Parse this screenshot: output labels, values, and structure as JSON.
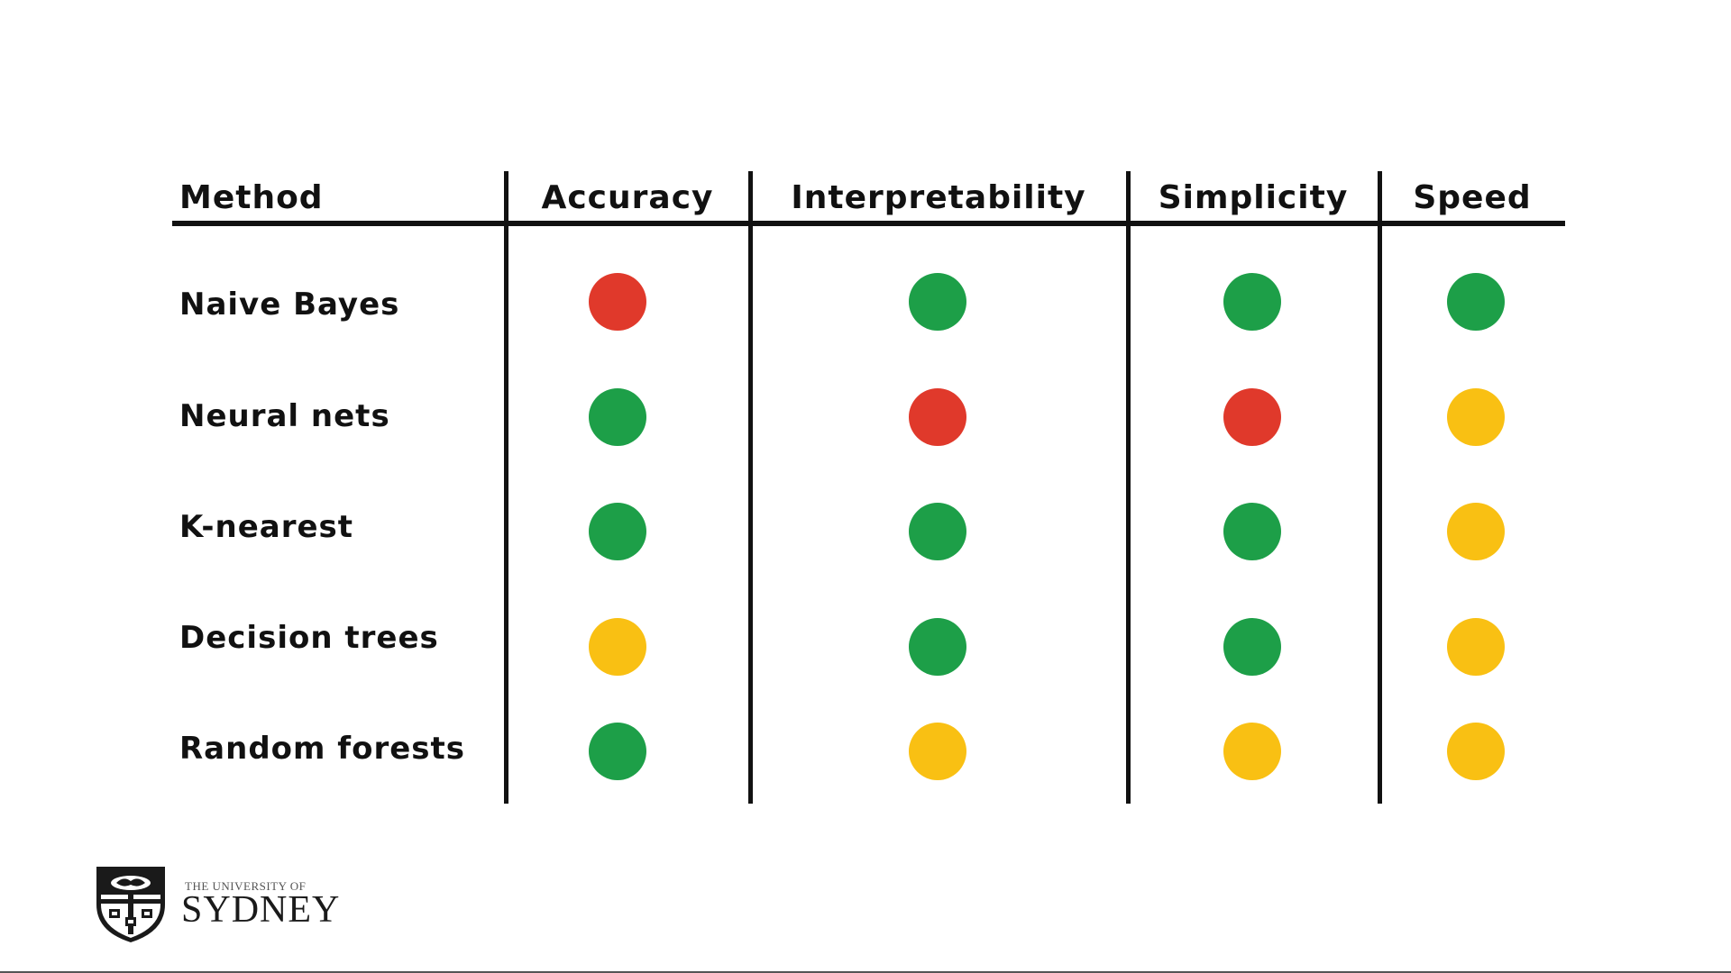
{
  "table": {
    "headers": {
      "method": "Method",
      "accuracy": "Accuracy",
      "interpretability": "Interpretability",
      "simplicity": "Simplicity",
      "speed": "Speed"
    },
    "rows": [
      {
        "method": "Naive Bayes",
        "accuracy": "red",
        "interpretability": "green",
        "simplicity": "green",
        "speed": "green"
      },
      {
        "method": "Neural nets",
        "accuracy": "green",
        "interpretability": "red",
        "simplicity": "red",
        "speed": "yellow"
      },
      {
        "method": "K-nearest",
        "accuracy": "green",
        "interpretability": "green",
        "simplicity": "green",
        "speed": "yellow"
      },
      {
        "method": "Decision trees",
        "accuracy": "yellow",
        "interpretability": "green",
        "simplicity": "green",
        "speed": "yellow"
      },
      {
        "method": "Random forests",
        "accuracy": "green",
        "interpretability": "yellow",
        "simplicity": "yellow",
        "speed": "yellow"
      }
    ]
  },
  "colors": {
    "red": "#e0392b",
    "green": "#1d9f48",
    "yellow": "#f9c013"
  },
  "logo": {
    "small_text": "THE UNIVERSITY OF",
    "big_text": "SYDNEY"
  }
}
